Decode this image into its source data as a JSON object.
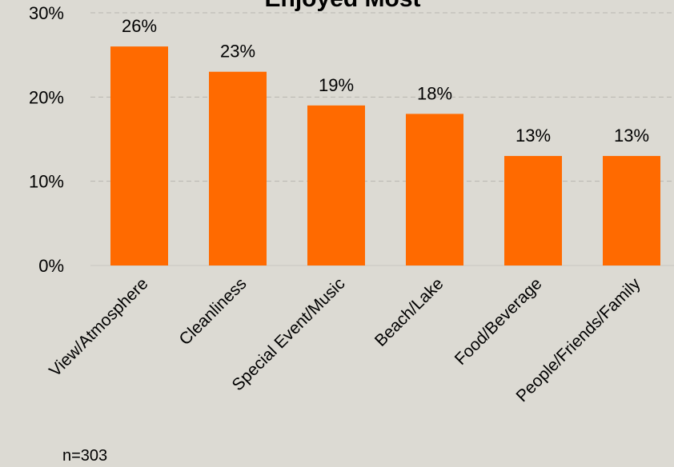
{
  "chart_data": {
    "type": "bar",
    "title": "Enjoyed Most",
    "categories": [
      "View/Atmosphere",
      "Cleanliness",
      "Special Event/Music",
      "Beach/Lake",
      "Food/Beverage",
      "People/Friends/Family"
    ],
    "values": [
      26,
      23,
      19,
      18,
      13,
      13
    ],
    "data_labels": [
      "26%",
      "23%",
      "19%",
      "18%",
      "13%",
      "13%"
    ],
    "yticks": [
      0,
      10,
      20,
      30
    ],
    "ytick_labels": [
      "0%",
      "10%",
      "20%",
      "30%"
    ],
    "ylim": [
      0,
      30
    ],
    "xlabel": "",
    "ylabel": "",
    "grid": true,
    "bar_color": "#ff6a00",
    "note": "n=303"
  }
}
